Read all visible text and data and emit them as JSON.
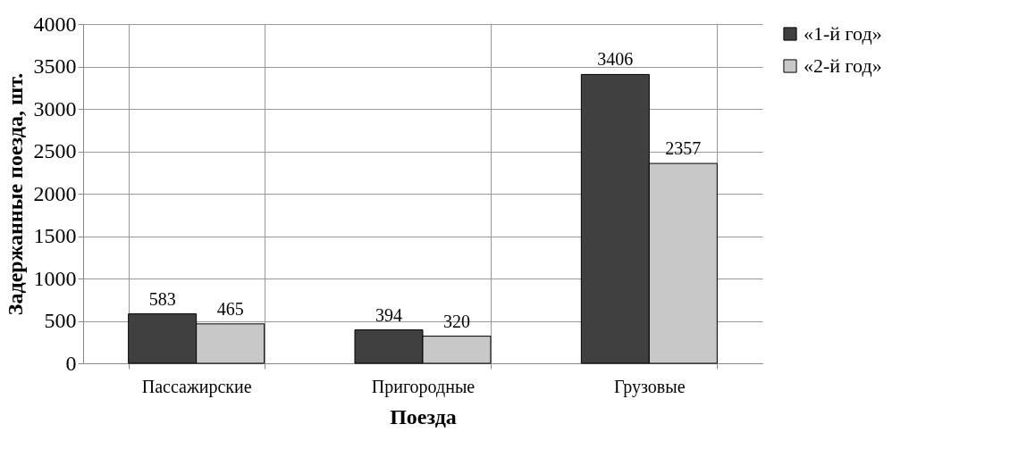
{
  "chart_data": {
    "type": "bar",
    "xlabel": "Поезда",
    "ylabel": "Задержанные поезда, шт.",
    "categories": [
      "Пассажирские",
      "Пригородные",
      "Грузовые"
    ],
    "series": [
      {
        "name": "«1-й год»",
        "color": "#404040",
        "values": [
          583,
          394,
          3406
        ]
      },
      {
        "name": "«2-й год»",
        "color": "#c8c8c8",
        "values": [
          465,
          320,
          2357
        ]
      }
    ],
    "ylim": [
      0,
      4000
    ],
    "yticks": [
      0,
      500,
      1000,
      1500,
      2000,
      2500,
      3000,
      3500,
      4000
    ],
    "grid": true,
    "legend": "right",
    "data_labels": true
  }
}
